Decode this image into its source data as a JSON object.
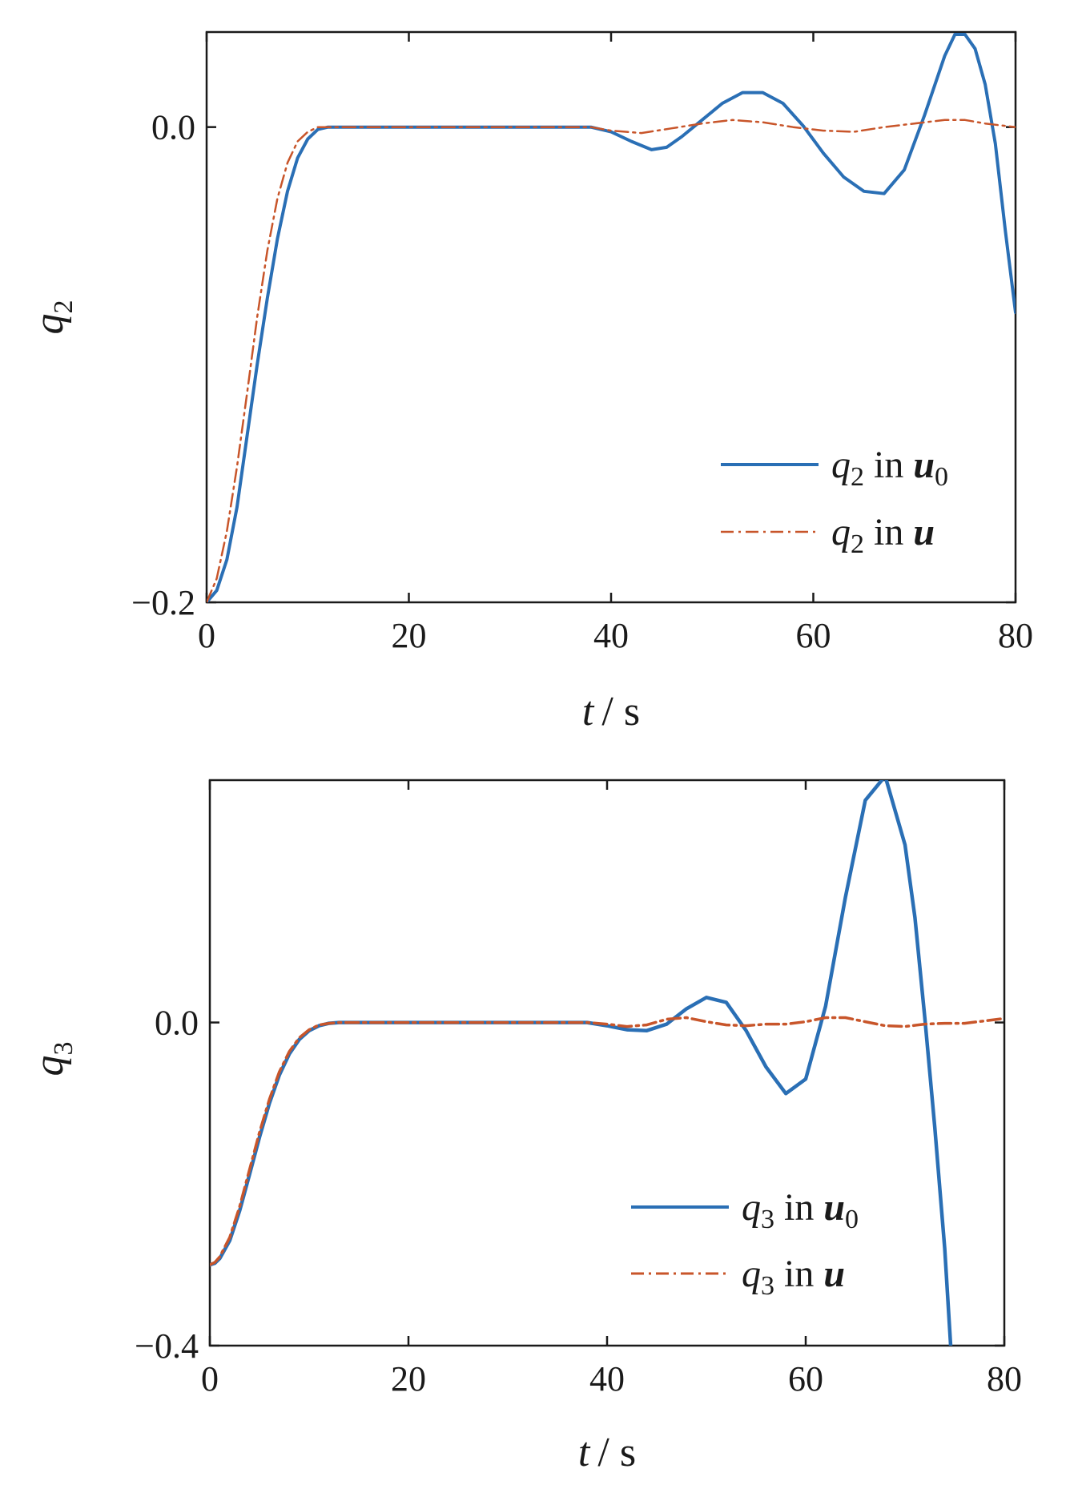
{
  "chart_data": [
    {
      "type": "line",
      "ylabel": "q",
      "ylabel_subscript": "2",
      "xlabel": "t",
      "xlabel_unit": "/ s",
      "xlim": [
        0,
        80
      ],
      "ylim": [
        -0.2,
        0.04
      ],
      "xticks": [
        "0",
        "20",
        "40",
        "60",
        "80"
      ],
      "yticks": [
        "−0.2",
        "0.0"
      ],
      "legend": {
        "position": "bottom-right",
        "entries": [
          {
            "prefix": "q",
            "sub": "2",
            "mid": " in ",
            "vec": "u",
            "vec_sub": "0"
          },
          {
            "prefix": "q",
            "sub": "2",
            "mid": " in ",
            "vec": "u",
            "vec_sub": ""
          }
        ]
      },
      "series": [
        {
          "color": "#2a6fb5",
          "style": "solid",
          "x": [
            0,
            1,
            2,
            3,
            4,
            5,
            6,
            7,
            8,
            9,
            10,
            11,
            12,
            13,
            14,
            16,
            18,
            20,
            25,
            30,
            35,
            38,
            40,
            42,
            44,
            45.5,
            47,
            49,
            51,
            53,
            55,
            57,
            59,
            61,
            63,
            65,
            67,
            69,
            71,
            73,
            74,
            75,
            76,
            77,
            78,
            79,
            80
          ],
          "y": [
            -0.2,
            -0.195,
            -0.182,
            -0.16,
            -0.13,
            -0.1,
            -0.072,
            -0.047,
            -0.027,
            -0.013,
            -0.005,
            -0.001,
            0,
            0,
            0,
            0,
            0,
            0,
            0,
            0,
            0,
            0,
            -0.002,
            -0.006,
            -0.0095,
            -0.0085,
            -0.004,
            0.003,
            0.01,
            0.0145,
            0.0145,
            0.01,
            0.0005,
            -0.011,
            -0.021,
            -0.027,
            -0.028,
            -0.018,
            0.005,
            0.03,
            0.039,
            0.039,
            0.033,
            0.018,
            -0.007,
            -0.044,
            -0.078
          ]
        },
        {
          "color": "#c8552a",
          "style": "dashdot",
          "x": [
            0,
            1,
            2,
            3,
            4,
            5,
            6,
            7,
            8,
            9,
            10,
            11,
            12,
            13,
            14,
            16,
            18,
            20,
            25,
            30,
            35,
            38,
            40,
            43,
            46,
            49,
            52,
            55,
            58,
            61,
            64,
            67,
            70,
            73,
            75,
            77,
            80
          ],
          "y": [
            -0.2,
            -0.19,
            -0.17,
            -0.143,
            -0.112,
            -0.08,
            -0.052,
            -0.03,
            -0.015,
            -0.006,
            -0.002,
            0,
            0,
            0,
            0,
            0,
            0,
            0,
            0,
            0,
            0,
            0,
            -0.0015,
            -0.0025,
            -0.0005,
            0.0015,
            0.003,
            0.002,
            0,
            -0.0015,
            -0.002,
            0,
            0.0015,
            0.003,
            0.003,
            0.0015,
            0
          ]
        }
      ]
    },
    {
      "type": "line",
      "ylabel": "q",
      "ylabel_subscript": "3",
      "xlabel": "t",
      "xlabel_unit": "/ s",
      "xlim": [
        0,
        80
      ],
      "ylim": [
        -0.4,
        0.3
      ],
      "xticks": [
        "0",
        "20",
        "40",
        "60",
        "80"
      ],
      "yticks": [
        "−0.4",
        "0.0"
      ],
      "legend": {
        "position": "bottom-right",
        "entries": [
          {
            "prefix": "q",
            "sub": "3",
            "mid": " in ",
            "vec": "u",
            "vec_sub": "0"
          },
          {
            "prefix": "q",
            "sub": "3",
            "mid": " in ",
            "vec": "u",
            "vec_sub": ""
          }
        ]
      },
      "series": [
        {
          "color": "#2a6fb5",
          "style": "solid",
          "x": [
            0,
            0.5,
            1,
            2,
            3,
            4,
            5,
            6,
            7,
            8,
            9,
            10,
            11,
            12,
            13,
            14,
            16,
            20,
            25,
            30,
            35,
            38,
            40,
            42,
            44,
            46,
            48,
            50,
            52,
            54,
            56,
            58,
            60,
            62,
            64,
            66,
            68,
            70,
            71,
            72,
            73,
            74,
            74.6
          ],
          "y": [
            -0.3,
            -0.298,
            -0.292,
            -0.27,
            -0.233,
            -0.188,
            -0.142,
            -0.1,
            -0.065,
            -0.039,
            -0.021,
            -0.01,
            -0.004,
            -0.001,
            0,
            0,
            0,
            0,
            0,
            0,
            0,
            0,
            -0.004,
            -0.009,
            -0.01,
            -0.002,
            0.017,
            0.031,
            0.025,
            -0.01,
            -0.055,
            -0.088,
            -0.07,
            0.02,
            0.155,
            0.275,
            0.305,
            0.22,
            0.13,
            0.005,
            -0.13,
            -0.28,
            -0.4
          ]
        },
        {
          "color": "#c8552a",
          "style": "dashdot",
          "x": [
            0,
            0.5,
            1,
            2,
            3,
            4,
            5,
            6,
            7,
            8,
            9,
            10,
            11,
            12,
            13,
            14,
            16,
            20,
            25,
            30,
            35,
            38,
            40,
            42,
            44,
            46,
            48,
            50,
            52,
            54,
            56,
            58,
            60,
            62,
            64,
            66,
            68,
            70,
            72,
            74,
            76,
            78,
            80
          ],
          "y": [
            -0.3,
            -0.297,
            -0.29,
            -0.266,
            -0.228,
            -0.182,
            -0.136,
            -0.095,
            -0.061,
            -0.036,
            -0.019,
            -0.009,
            -0.003,
            -0.001,
            0,
            0,
            0,
            0,
            0,
            0,
            0,
            0,
            -0.002,
            -0.005,
            -0.003,
            0.004,
            0.006,
            0.001,
            -0.003,
            -0.004,
            -0.002,
            -0.002,
            0.001,
            0.006,
            0.006,
            0.001,
            -0.004,
            -0.005,
            -0.002,
            -0.001,
            -0.001,
            0.002,
            0.005
          ]
        }
      ]
    }
  ]
}
